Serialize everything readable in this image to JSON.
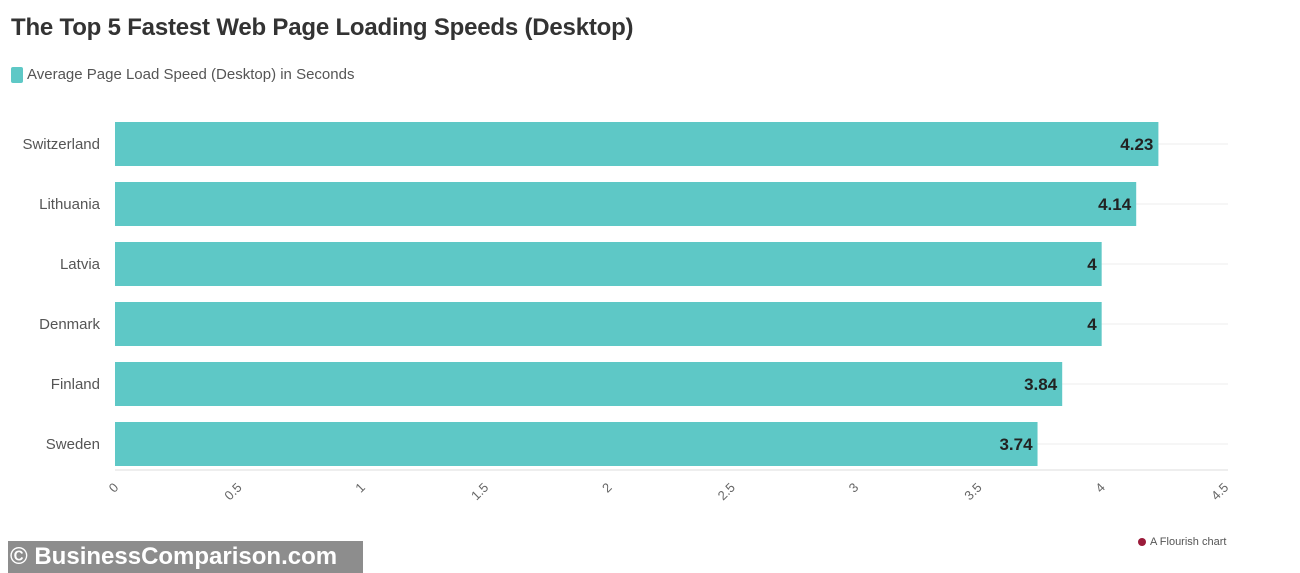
{
  "chart_data": {
    "type": "bar",
    "orientation": "horizontal",
    "title": "The Top 5 Fastest Web Page Loading Speeds (Desktop)",
    "legend": [
      "Average Page Load Speed (Desktop) in Seconds"
    ],
    "categories": [
      "Switzerland",
      "Lithuania",
      "Latvia",
      "Denmark",
      "Finland",
      "Sweden"
    ],
    "series": [
      {
        "name": "Average Page Load Speed (Desktop) in Seconds",
        "values": [
          4.23,
          4.14,
          4,
          4,
          3.84,
          3.74
        ]
      }
    ],
    "data_labels": [
      "4.23",
      "4.14",
      "4",
      "4",
      "3.84",
      "3.74"
    ],
    "xlim": [
      0,
      4.5
    ],
    "xticks": [
      "0",
      "0.5",
      "1",
      "1.5",
      "2",
      "2.5",
      "3",
      "3.5",
      "4",
      "4.5"
    ],
    "grid": true,
    "legend_position": "top-left",
    "colors": {
      "bar": "#5ec8c6",
      "label": "#222222"
    }
  },
  "watermark": "© BusinessComparison.com",
  "credit": "A Flourish chart"
}
